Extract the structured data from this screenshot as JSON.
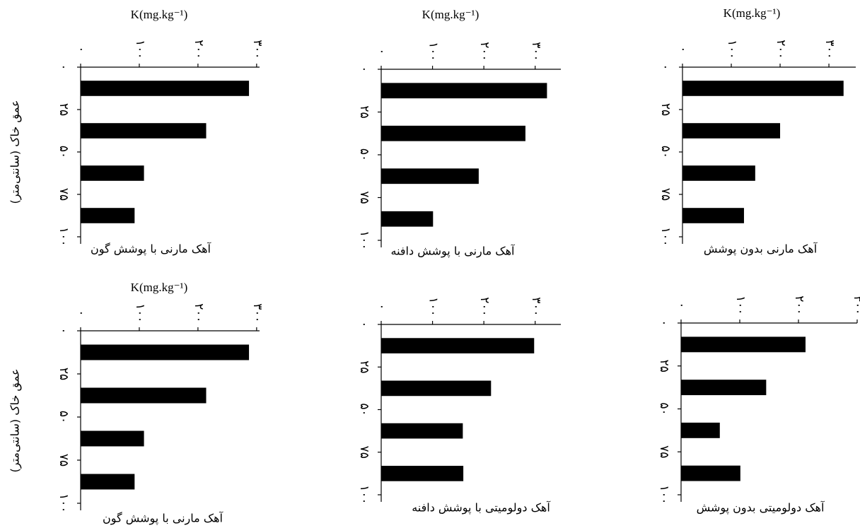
{
  "chart_data": [
    {
      "type": "bar",
      "orientation": "horizontal",
      "title": "K(mg.kg⁻¹)",
      "subtitle": "آهک مارنی با پوشش گون",
      "ylabel": "عمق خاک (سانتی‌متر)",
      "y": [
        12.5,
        37.5,
        62.5,
        87.5
      ],
      "values": [
        287,
        214,
        108,
        92
      ],
      "color": "#000000",
      "xlim": [
        0,
        305
      ],
      "xticks": [
        {
          "value": 0,
          "label": "۰"
        },
        {
          "value": 100,
          "label": "۱۰۰"
        },
        {
          "value": 200,
          "label": "۲۰۰"
        },
        {
          "value": 300,
          "label": "۳۰۰"
        }
      ],
      "ylim": [
        0,
        100
      ],
      "yticks": [
        {
          "value": 0,
          "label": "۰"
        },
        {
          "value": 25,
          "label": "۲۵"
        },
        {
          "value": 50,
          "label": "۵۰"
        },
        {
          "value": 75,
          "label": "۷۵"
        },
        {
          "value": 100,
          "label": "۱۰۰"
        }
      ]
    },
    {
      "type": "bar",
      "orientation": "horizontal",
      "title": "K(mg.kg⁻¹)",
      "subtitle": "آهک مارنی با پوشش  دافنه",
      "y": [
        12.5,
        37.5,
        62.5,
        87.5
      ],
      "values": [
        323,
        281,
        190,
        101
      ],
      "color": "#000000",
      "xlim": [
        0,
        350
      ],
      "xticks": [
        {
          "value": 0,
          "label": "۰"
        },
        {
          "value": 100,
          "label": "۱۰۰"
        },
        {
          "value": 200,
          "label": "۲۰۰"
        },
        {
          "value": 300,
          "label": "۳۰۰"
        }
      ],
      "ylim": [
        0,
        100
      ],
      "yticks": [
        {
          "value": 0,
          "label": "۰"
        },
        {
          "value": 25,
          "label": "۲۵"
        },
        {
          "value": 50,
          "label": "۵۰"
        },
        {
          "value": 75,
          "label": "۷۵"
        },
        {
          "value": 100,
          "label": "۱۰۰"
        }
      ]
    },
    {
      "type": "bar",
      "orientation": "horizontal",
      "title": "K(mg.kg⁻¹)",
      "subtitle": "آهک مارنی بدون پوشش",
      "y": [
        12.5,
        37.5,
        62.5,
        87.5
      ],
      "values": [
        330,
        200,
        149,
        126
      ],
      "color": "#000000",
      "xlim": [
        0,
        355
      ],
      "xticks": [
        {
          "value": 0,
          "label": "۰"
        },
        {
          "value": 100,
          "label": "۱۰۰"
        },
        {
          "value": 200,
          "label": "۲۰۰"
        },
        {
          "value": 300,
          "label": "۳۰۰"
        }
      ],
      "ylim": [
        0,
        100
      ],
      "yticks": [
        {
          "value": 0,
          "label": "۰"
        },
        {
          "value": 25,
          "label": "۲۵"
        },
        {
          "value": 50,
          "label": "۵۰"
        },
        {
          "value": 75,
          "label": "۷۵"
        },
        {
          "value": 100,
          "label": "۱۰۰"
        }
      ]
    },
    {
      "type": "bar",
      "orientation": "horizontal",
      "title": "K(mg.kg⁻¹)",
      "subtitle": "آهک مارنی با پوشش گون",
      "ylabel": "عمق خاک (سانتی‌متر)",
      "y": [
        12.5,
        37.5,
        62.5,
        87.5
      ],
      "values": [
        287,
        214,
        108,
        92
      ],
      "color": "#000000",
      "xlim": [
        0,
        305
      ],
      "xticks": [
        {
          "value": 0,
          "label": "۰"
        },
        {
          "value": 100,
          "label": "۱۰۰"
        },
        {
          "value": 200,
          "label": "۲۰۰"
        },
        {
          "value": 300,
          "label": "۳۰۰"
        }
      ],
      "ylim": [
        0,
        100
      ],
      "yticks": [
        {
          "value": 0,
          "label": "۰"
        },
        {
          "value": 25,
          "label": "۲۵"
        },
        {
          "value": 50,
          "label": "۵۰"
        },
        {
          "value": 75,
          "label": "۷۵"
        },
        {
          "value": 100,
          "label": "۱۰۰"
        }
      ]
    },
    {
      "type": "bar",
      "orientation": "horizontal",
      "subtitle": "آهک دولومیتی با پوشش دافنه",
      "y": [
        12.5,
        37.5,
        62.5,
        87.5
      ],
      "values": [
        298,
        214,
        159,
        160
      ],
      "color": "#000000",
      "xlim": [
        0,
        350
      ],
      "xticks": [
        {
          "value": 0,
          "label": "۰"
        },
        {
          "value": 100,
          "label": "۱۰۰"
        },
        {
          "value": 200,
          "label": "۲۰۰"
        },
        {
          "value": 300,
          "label": "۳۰۰"
        }
      ],
      "ylim": [
        0,
        100
      ],
      "yticks": [
        {
          "value": 0,
          "label": "۰"
        },
        {
          "value": 25,
          "label": "۲۵"
        },
        {
          "value": 50,
          "label": "۵۰"
        },
        {
          "value": 75,
          "label": "۷۵"
        },
        {
          "value": 100,
          "label": "۱۰۰"
        }
      ]
    },
    {
      "type": "bar",
      "orientation": "horizontal",
      "subtitle": "آهک دولومیتی بدون پوشش",
      "y": [
        12.5,
        37.5,
        62.5,
        87.5
      ],
      "values": [
        212,
        145,
        66,
        101
      ],
      "color": "#000000",
      "xlim": [
        0,
        300
      ],
      "xticks": [
        {
          "value": 0,
          "label": "۰"
        },
        {
          "value": 100,
          "label": "۱۰۰"
        },
        {
          "value": 200,
          "label": "۲۰۰"
        },
        {
          "value": 300,
          "label": "۳۰۰"
        }
      ],
      "ylim": [
        0,
        100
      ],
      "yticks": [
        {
          "value": 0,
          "label": "۰"
        },
        {
          "value": 25,
          "label": "۲۵"
        },
        {
          "value": 50,
          "label": "۵۰"
        },
        {
          "value": 75,
          "label": "۷۵"
        },
        {
          "value": 100,
          "label": "۱۰۰"
        }
      ]
    }
  ]
}
